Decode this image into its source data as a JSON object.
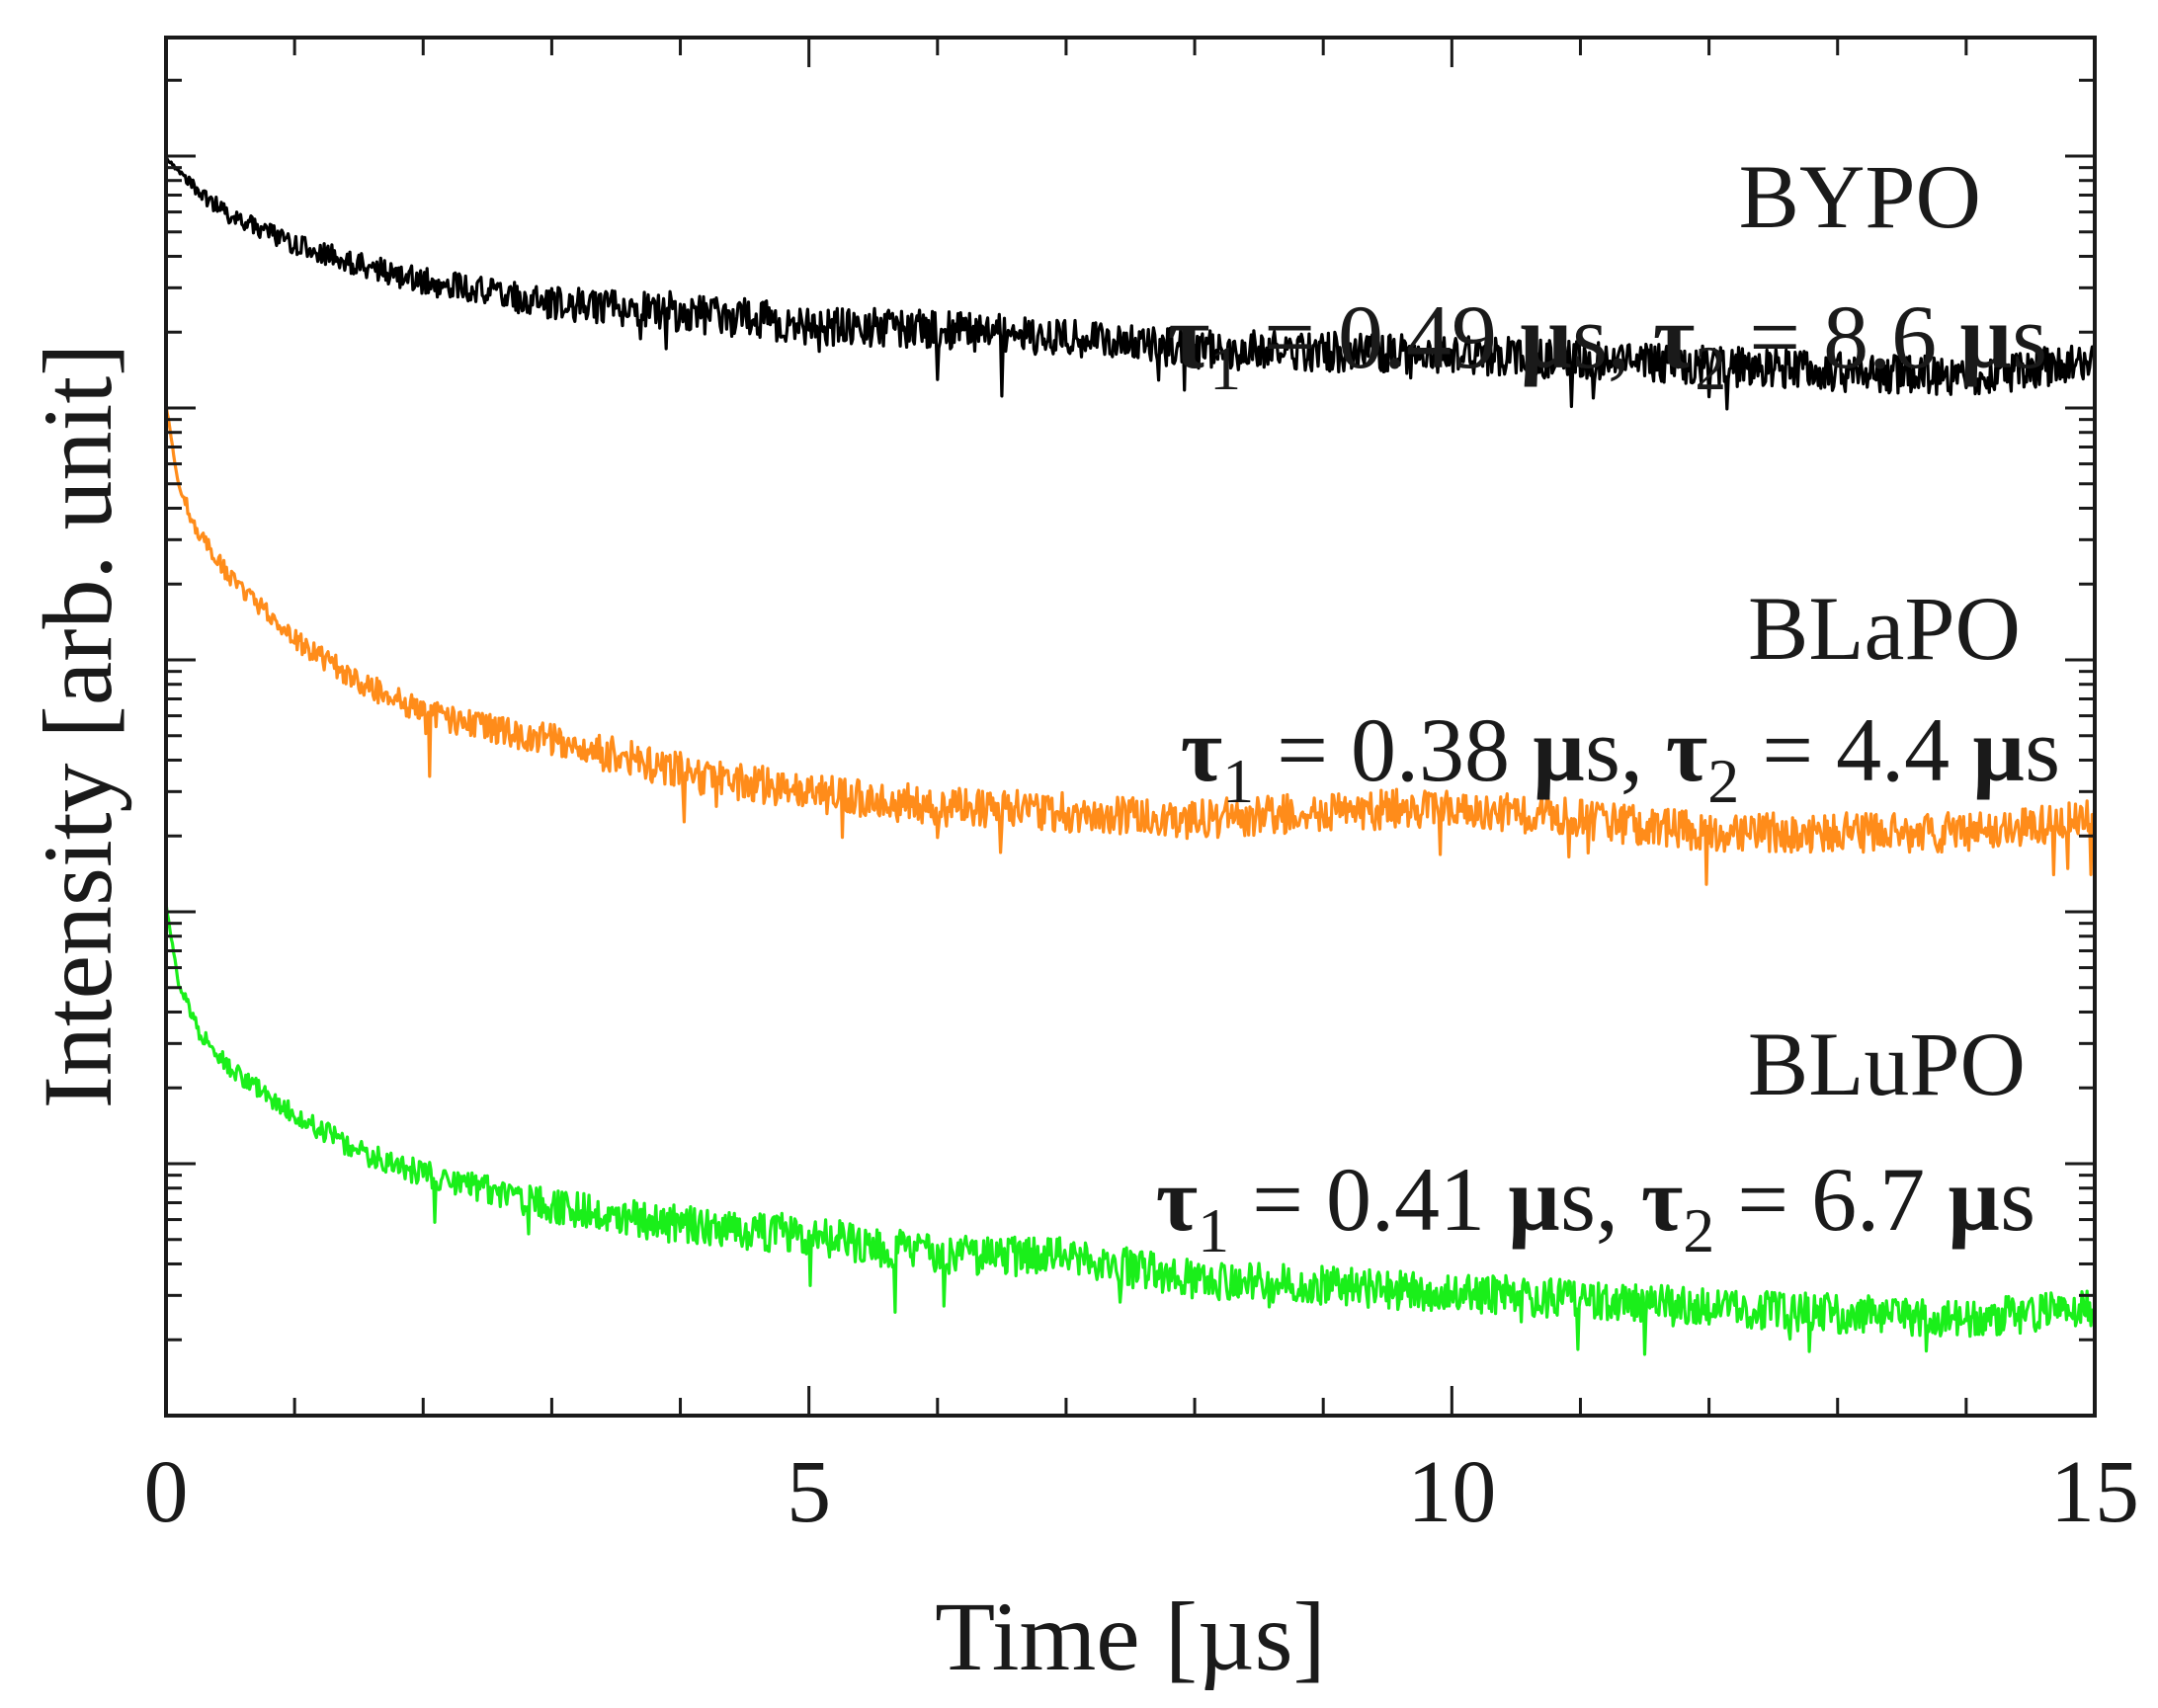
{
  "chart_data": {
    "type": "line",
    "xlabel": "Time [µs]",
    "ylabel": "Intensity [arb. unit]",
    "xlim": [
      0,
      15
    ],
    "x_ticks": [
      "0",
      "5",
      "10",
      "15"
    ],
    "y_scale": "log (stacked, arbitrary offsets)",
    "series": [
      {
        "name": "BYPO",
        "color": "#000000",
        "tau1": "0.49",
        "tau2": "8.6",
        "tau_unit": "µs",
        "points": [
          [
            0.0,
            1.0
          ],
          [
            0.25,
            0.82
          ],
          [
            0.5,
            0.71
          ],
          [
            1.0,
            0.6
          ],
          [
            1.5,
            0.53
          ],
          [
            2.0,
            0.48
          ],
          [
            3.0,
            0.42
          ],
          [
            4.0,
            0.4
          ],
          [
            5.0,
            0.37
          ],
          [
            6.0,
            0.36
          ],
          [
            8.0,
            0.32
          ],
          [
            10.0,
            0.31
          ],
          [
            12.0,
            0.29
          ],
          [
            14.0,
            0.27
          ],
          [
            15.0,
            0.3
          ]
        ]
      },
      {
        "name": "BLaPO",
        "color": "#ff8c1a",
        "tau1": "0.38",
        "tau2": "4.4",
        "tau_unit": "µs",
        "points": [
          [
            0.0,
            1.0
          ],
          [
            0.1,
            0.72
          ],
          [
            0.25,
            0.6
          ],
          [
            0.5,
            0.5
          ],
          [
            1.0,
            0.39
          ],
          [
            1.5,
            0.33
          ],
          [
            2.0,
            0.29
          ],
          [
            3.0,
            0.26
          ],
          [
            4.0,
            0.23
          ],
          [
            5.0,
            0.21
          ],
          [
            6.0,
            0.2
          ],
          [
            8.0,
            0.19
          ],
          [
            10.0,
            0.2
          ],
          [
            12.0,
            0.18
          ],
          [
            14.0,
            0.18
          ],
          [
            15.0,
            0.19
          ]
        ]
      },
      {
        "name": "BLuPO",
        "color": "#1aef1a",
        "tau1": "0.41",
        "tau2": "6.7",
        "tau_unit": "µs",
        "points": [
          [
            0.0,
            1.0
          ],
          [
            0.1,
            0.68
          ],
          [
            0.25,
            0.55
          ],
          [
            0.5,
            0.46
          ],
          [
            1.0,
            0.37
          ],
          [
            1.5,
            0.31
          ],
          [
            2.0,
            0.28
          ],
          [
            3.0,
            0.24
          ],
          [
            4.0,
            0.22
          ],
          [
            5.0,
            0.21
          ],
          [
            6.0,
            0.19
          ],
          [
            7.0,
            0.19
          ],
          [
            8.0,
            0.17
          ],
          [
            10.0,
            0.16
          ],
          [
            12.0,
            0.15
          ],
          [
            14.0,
            0.14
          ],
          [
            15.0,
            0.15
          ]
        ]
      }
    ]
  }
}
